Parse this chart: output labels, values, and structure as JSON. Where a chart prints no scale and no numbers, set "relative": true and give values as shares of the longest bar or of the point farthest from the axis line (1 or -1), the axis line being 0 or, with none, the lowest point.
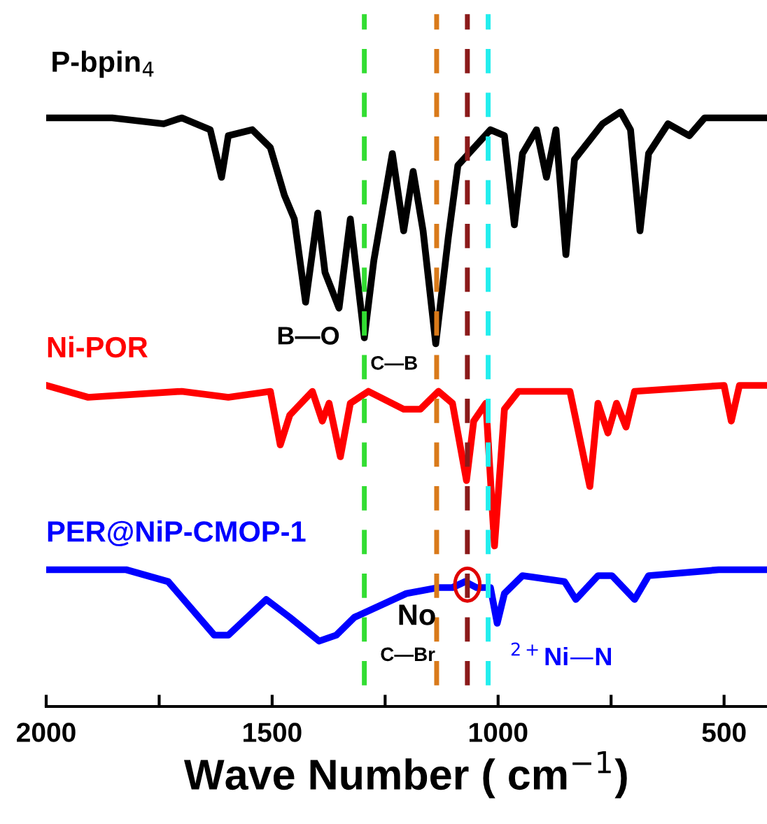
{
  "chart_data": {
    "type": "line",
    "relative": true,
    "xlabel": "Wave Number ( cm$^{−1}$)",
    "xlim": [
      2000,
      405
    ],
    "xticks": [
      2000,
      {
        "value": 1750,
        "label": null
      },
      1500,
      {
        "value": 1250,
        "label": null
      },
      1000,
      {
        "value": 750,
        "label": null
      },
      500
    ],
    "tick_labels": "x",
    "grid": false,
    "legend": false,
    "marker": "none",
    "line_style": "solid",
    "series": [
      {
        "name": "P-bpin$_{4}$",
        "color": "#000000",
        "x": [
          2000,
          1854,
          1740,
          1700,
          1637,
          1612,
          1597,
          1544,
          1504,
          1473,
          1451,
          1426,
          1399,
          1383,
          1352,
          1327,
          1296,
          1275,
          1234,
          1209,
          1188,
          1166,
          1138,
          1110,
          1089,
          1017,
          986,
          964,
          946,
          915,
          893,
          872,
          850,
          831,
          769,
          729,
          707,
          686,
          667,
          624,
          577,
          543,
          407
        ],
        "values": [
          0.99,
          0.99,
          0.98,
          0.99,
          0.97,
          0.89,
          0.96,
          0.97,
          0.94,
          0.86,
          0.82,
          0.68,
          0.83,
          0.73,
          0.67,
          0.82,
          0.62,
          0.75,
          0.93,
          0.8,
          0.9,
          0.8,
          0.61,
          0.79,
          0.91,
          0.97,
          0.96,
          0.81,
          0.93,
          0.97,
          0.89,
          0.97,
          0.76,
          0.92,
          0.98,
          1.0,
          0.97,
          0.8,
          0.93,
          0.98,
          0.96,
          0.99,
          0.99
        ]
      },
      {
        "name": "Ni-POR",
        "color": "#ff0000",
        "x": [
          2000,
          1907,
          1700,
          1597,
          1504,
          1482,
          1461,
          1411,
          1389,
          1374,
          1349,
          1327,
          1287,
          1209,
          1172,
          1132,
          1101,
          1070,
          1054,
          1027,
          1008,
          986,
          955,
          841,
          797,
          779,
          757,
          738,
          717,
          698,
          500,
          484,
          466,
          407
        ],
        "values": [
          0.54,
          0.52,
          0.53,
          0.52,
          0.53,
          0.44,
          0.49,
          0.53,
          0.48,
          0.51,
          0.42,
          0.51,
          0.53,
          0.5,
          0.5,
          0.53,
          0.51,
          0.38,
          0.48,
          0.51,
          0.27,
          0.5,
          0.53,
          0.53,
          0.37,
          0.51,
          0.46,
          0.51,
          0.47,
          0.53,
          0.54,
          0.48,
          0.54,
          0.54
        ]
      },
      {
        "name": "PER@NiP-CMOP-1",
        "color": "#0000ff",
        "x": [
          2000,
          1823,
          1730,
          1628,
          1597,
          1513,
          1461,
          1396,
          1358,
          1318,
          1203,
          1132,
          1101,
          1073,
          1048,
          1017,
          1002,
          986,
          946,
          853,
          828,
          779,
          748,
          698,
          667,
          512,
          407
        ],
        "values": [
          0.23,
          0.23,
          0.21,
          0.12,
          0.12,
          0.18,
          0.15,
          0.11,
          0.12,
          0.15,
          0.19,
          0.2,
          0.2,
          0.21,
          0.2,
          0.2,
          0.14,
          0.19,
          0.22,
          0.21,
          0.18,
          0.22,
          0.22,
          0.18,
          0.22,
          0.23,
          0.23
        ]
      }
    ],
    "ref_lines": [
      {
        "axis": "x",
        "value": 1296,
        "color": "#33dd33",
        "line_style": "dashed"
      },
      {
        "axis": "x",
        "value": 1136,
        "color": "#d97a1a",
        "line_style": "dashed"
      },
      {
        "axis": "x",
        "value": 1068,
        "color": "#8b1a1a",
        "line_style": "dashed"
      },
      {
        "axis": "x",
        "value": 1022,
        "color": "#22eeee",
        "line_style": "dashed"
      }
    ],
    "annotations": [
      "B—O",
      "C—B",
      "No",
      "C—Br",
      "$^{2+}$Ni—N"
    ]
  }
}
